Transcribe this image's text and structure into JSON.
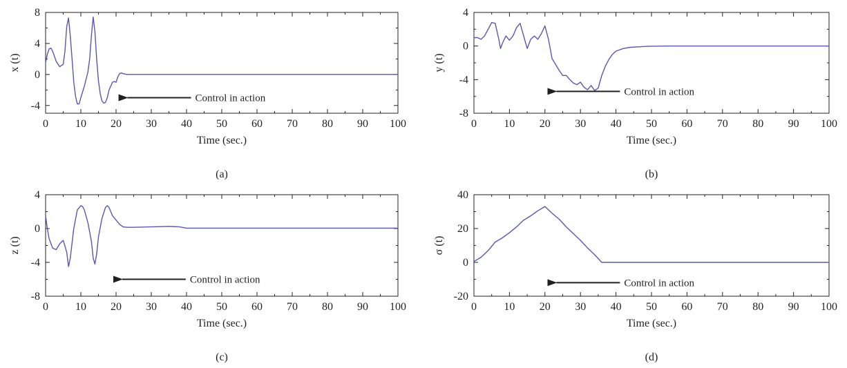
{
  "colors": {
    "series": "#5856b0",
    "axis": "#231f20",
    "background": "#ffffff"
  },
  "chart_data": [
    {
      "panel": "(a)",
      "type": "line",
      "xlabel": "Time (sec.)",
      "ylabel": "x (t)",
      "xlim": [
        0,
        100
      ],
      "ylim": [
        -5,
        8
      ],
      "xticks": [
        0,
        10,
        20,
        30,
        40,
        50,
        60,
        70,
        80,
        90,
        100
      ],
      "yticks": [
        -4,
        0,
        4,
        8
      ],
      "annotation": {
        "text": "Control in action",
        "arrow_to": [
          20.5,
          -3
        ]
      },
      "series": [
        {
          "x": [
            0,
            0.5,
            1,
            1.5,
            2,
            3,
            4,
            5,
            5.5,
            6,
            6.5,
            7,
            7.5,
            8,
            8.5,
            9,
            9.5,
            10,
            11,
            12,
            12.5,
            13,
            13.5,
            14,
            14.5,
            15,
            15.5,
            16,
            16.5,
            17,
            17.5,
            18,
            19,
            19.5,
            20,
            20.5,
            21,
            21.5,
            22,
            23,
            30,
            40,
            50,
            60,
            70,
            80,
            90,
            100
          ],
          "y": [
            1.5,
            2.6,
            3.3,
            3.4,
            3.0,
            1.7,
            1.0,
            1.3,
            3.0,
            6.2,
            7.3,
            5.0,
            2.0,
            -1.0,
            -2.8,
            -3.8,
            -3.8,
            -3.0,
            -1.5,
            0.3,
            2.0,
            5.0,
            7.4,
            5.5,
            2.0,
            -0.8,
            -2.5,
            -3.4,
            -3.7,
            -3.6,
            -3.0,
            -2.0,
            -1.0,
            -0.9,
            -1.0,
            -0.3,
            0.1,
            0.2,
            0.1,
            0.0,
            0.0,
            0.0,
            0.0,
            0.0,
            0.0,
            0.0,
            0.0,
            0.0
          ]
        }
      ]
    },
    {
      "panel": "(b)",
      "type": "line",
      "xlabel": "Time (sec.)",
      "ylabel": "y (t)",
      "xlim": [
        0,
        100
      ],
      "ylim": [
        -8,
        4
      ],
      "xticks": [
        0,
        10,
        20,
        30,
        40,
        50,
        60,
        70,
        80,
        90,
        100
      ],
      "yticks": [
        -8,
        -4,
        0,
        4
      ],
      "annotation": {
        "text": "Control in action",
        "arrow_to": [
          20.5,
          -5.4
        ]
      },
      "series": [
        {
          "x": [
            0,
            1,
            2,
            3,
            4,
            5,
            6,
            7,
            7.5,
            8,
            9,
            10,
            11,
            12,
            13,
            14,
            15,
            16,
            17,
            18,
            19,
            20,
            21,
            22,
            23,
            24,
            25,
            26,
            27,
            28,
            29,
            30,
            31,
            32,
            33,
            34,
            35,
            36,
            37,
            38,
            39,
            40,
            42,
            44,
            46,
            48,
            50,
            55,
            60,
            70,
            80,
            90,
            100
          ],
          "y": [
            1.0,
            1.0,
            0.8,
            1.2,
            2.0,
            2.8,
            2.7,
            0.8,
            -0.3,
            0.3,
            1.2,
            0.7,
            1.2,
            2.2,
            2.7,
            1.2,
            -0.3,
            0.8,
            1.2,
            0.8,
            1.5,
            2.4,
            0.8,
            -1.5,
            -2.2,
            -2.9,
            -3.5,
            -3.5,
            -4.0,
            -4.4,
            -4.6,
            -4.3,
            -4.9,
            -5.2,
            -4.7,
            -5.3,
            -5.0,
            -3.5,
            -2.4,
            -1.6,
            -1.0,
            -0.6,
            -0.3,
            -0.15,
            -0.1,
            -0.05,
            -0.02,
            0.0,
            0.0,
            0.0,
            0.0,
            0.0,
            0.0
          ]
        }
      ]
    },
    {
      "panel": "(c)",
      "type": "line",
      "xlabel": "Time (sec.)",
      "ylabel": "z (t)",
      "xlim": [
        0,
        100
      ],
      "ylim": [
        -8,
        4
      ],
      "xticks": [
        0,
        10,
        20,
        30,
        40,
        50,
        60,
        70,
        80,
        90,
        100
      ],
      "yticks": [
        -8,
        -4,
        0,
        4
      ],
      "annotation": {
        "text": "Control in action",
        "arrow_to": [
          19,
          -6
        ]
      },
      "series": [
        {
          "x": [
            0,
            0.5,
            1,
            2,
            3,
            4,
            5,
            6,
            6.5,
            7,
            8,
            9,
            10,
            10.5,
            11,
            12,
            13,
            13.5,
            14,
            14.5,
            15,
            16,
            17,
            17.5,
            18,
            19,
            20,
            21,
            22,
            23,
            25,
            30,
            35,
            38,
            40,
            50,
            60,
            70,
            80,
            90,
            100
          ],
          "y": [
            1.5,
            0.0,
            -1.2,
            -2.3,
            -2.5,
            -1.8,
            -1.4,
            -2.8,
            -4.5,
            -3.5,
            0.0,
            2.2,
            2.7,
            2.6,
            2.2,
            0.7,
            -1.5,
            -3.5,
            -4.2,
            -3.0,
            -1.0,
            1.2,
            2.5,
            2.7,
            2.5,
            1.5,
            1.0,
            0.5,
            0.2,
            0.15,
            0.15,
            0.2,
            0.25,
            0.2,
            0.05,
            0.05,
            0.05,
            0.05,
            0.05,
            0.05,
            0.05
          ]
        }
      ]
    },
    {
      "panel": "(d)",
      "type": "line",
      "xlabel": "Time (sec.)",
      "ylabel": "σ (t)",
      "xlim": [
        0,
        100
      ],
      "ylim": [
        -20,
        40
      ],
      "xticks": [
        0,
        10,
        20,
        30,
        40,
        50,
        60,
        70,
        80,
        90,
        100
      ],
      "yticks": [
        -20,
        0,
        20,
        40
      ],
      "annotation": {
        "text": "Control in action",
        "arrow_to": [
          20.5,
          -12
        ]
      },
      "series": [
        {
          "x": [
            0,
            2,
            4,
            6,
            8,
            10,
            12,
            14,
            16,
            18,
            20,
            22,
            24,
            26,
            28,
            30,
            32,
            34,
            36,
            40,
            50,
            60,
            70,
            80,
            90,
            100
          ],
          "y": [
            0.5,
            3.0,
            7.0,
            12.0,
            14.5,
            17.5,
            21.0,
            25.0,
            27.5,
            30.5,
            33.0,
            29.0,
            25.5,
            21.0,
            17.0,
            13.0,
            8.5,
            4.5,
            0.0,
            0.0,
            0.0,
            0.0,
            0.0,
            0.0,
            0.0,
            0.0
          ]
        }
      ]
    }
  ]
}
